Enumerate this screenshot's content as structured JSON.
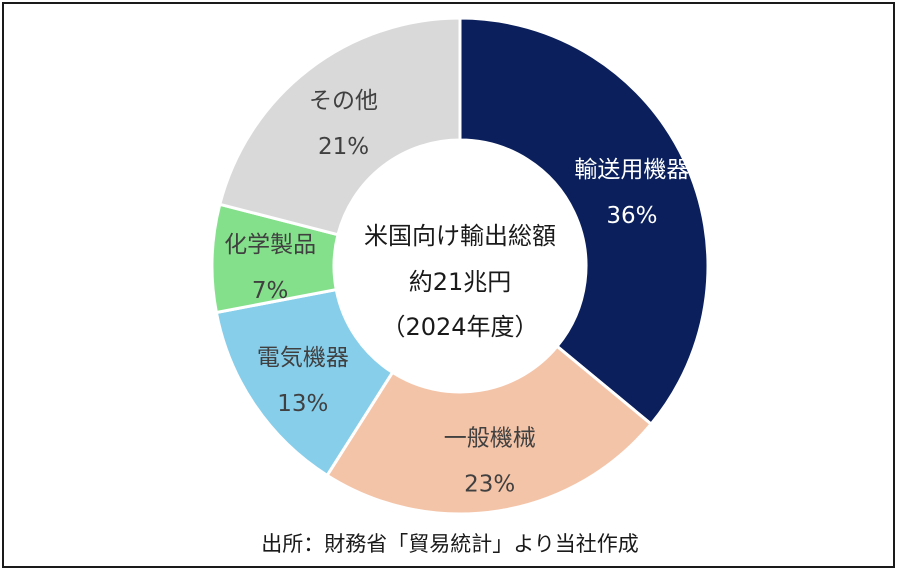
{
  "chart_data": {
    "type": "pie",
    "variant": "donut",
    "center_text": [
      "米国向け輸出総額",
      "約21兆円",
      "（2024年度）"
    ],
    "slices": [
      {
        "label": "輸送用機器",
        "value": 36,
        "value_label": "36%",
        "color": "#0a1f5c",
        "text_color": "#ffffff"
      },
      {
        "label": "一般機械",
        "value": 23,
        "value_label": "23%",
        "color": "#f4c4a8",
        "text_color": "#404040"
      },
      {
        "label": "電気機器",
        "value": 13,
        "value_label": "13%",
        "color": "#87ceeb",
        "text_color": "#404040"
      },
      {
        "label": "化学製品",
        "value": 7,
        "value_label": "7%",
        "color": "#85e08b",
        "text_color": "#404040"
      },
      {
        "label": "その他",
        "value": 21,
        "value_label": "21%",
        "color": "#d9d9d9",
        "text_color": "#404040"
      }
    ],
    "start": "top",
    "direction": "clockwise"
  },
  "source": "出所：財務省「貿易統計」より当社作成"
}
